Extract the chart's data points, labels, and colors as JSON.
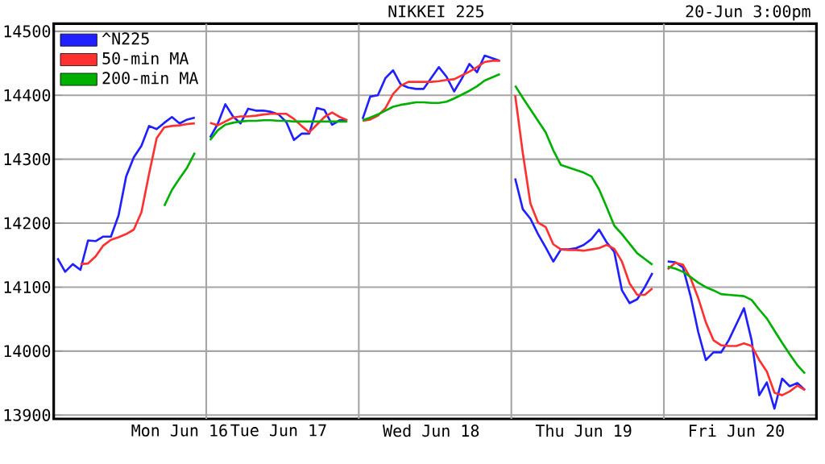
{
  "chart_data": {
    "type": "line",
    "title": "NIKKEI 225",
    "subtitle": "20-Jun 3:00pm",
    "categories": [
      null,
      null,
      null,
      null,
      null,
      null,
      null,
      null,
      null,
      null,
      null,
      null,
      null,
      null,
      null,
      null,
      "Mon Jun 16",
      null,
      null,
      null,
      null,
      null,
      null,
      null,
      null,
      null,
      null,
      null,
      null,
      "Tue Jun 17",
      null,
      null,
      null,
      null,
      null,
      null,
      null,
      null,
      null,
      null,
      null,
      null,
      null,
      null,
      null,
      null,
      null,
      null,
      null,
      "Wed Jun 18",
      null,
      null,
      null,
      null,
      null,
      null,
      null,
      null,
      null,
      null,
      null,
      null,
      null,
      null,
      null,
      null,
      null,
      null,
      null,
      "Thu Jun 19",
      null,
      null,
      null,
      null,
      null,
      null,
      null,
      null,
      null,
      null,
      null,
      null,
      null,
      null,
      null,
      null,
      null,
      null,
      null,
      "Fri Jun 20",
      null,
      null,
      null,
      null,
      null,
      null,
      null,
      null,
      null,
      null
    ],
    "ylim": [
      13894,
      14512
    ],
    "yticks": [
      13900,
      14000,
      14100,
      14200,
      14300,
      14400,
      14500
    ],
    "grid": "y",
    "legend": "top left",
    "series": [
      {
        "name": "^N225",
        "color": "#2020ff",
        "values": [
          14145,
          14124,
          14136,
          14127,
          14173,
          14172,
          14179,
          14179,
          14212,
          14273,
          14303,
          14321,
          14352,
          14347,
          14357,
          14366,
          14356,
          14362,
          14365,
          null,
          14334,
          14355,
          14386,
          14367,
          14356,
          14379,
          14376,
          14376,
          14374,
          14370,
          14358,
          14330,
          14340,
          14340,
          14380,
          14377,
          14354,
          14361,
          14361,
          null,
          14363,
          14398,
          14400,
          14427,
          14439,
          14417,
          14412,
          14410,
          14410,
          14427,
          14444,
          14429,
          14406,
          14426,
          14449,
          14436,
          14462,
          14458,
          14454,
          null,
          14270,
          14222,
          14207,
          14183,
          14162,
          14140,
          14159,
          14159,
          14161,
          14166,
          14175,
          14190,
          14170,
          14155,
          14095,
          14075,
          14081,
          14100,
          14122,
          null,
          14140,
          14139,
          14131,
          14086,
          14030,
          13986,
          13998,
          13998,
          14017,
          14042,
          14067,
          14017,
          13931,
          13951,
          13910,
          13957,
          13945,
          13950,
          13939,
          null
        ]
      },
      {
        "name": "50-min MA",
        "color": "#ff3030",
        "values": [
          null,
          null,
          null,
          14136,
          14137,
          14148,
          14165,
          14174,
          14178,
          14183,
          14190,
          14217,
          14277,
          14333,
          14350,
          14352,
          14353,
          14355,
          14356,
          null,
          14357,
          14353,
          14359,
          14365,
          14367,
          14367,
          14368,
          14370,
          14371,
          14371,
          14371,
          14363,
          14352,
          14342,
          14354,
          14366,
          14373,
          14366,
          14361,
          null,
          14360,
          14362,
          14368,
          14380,
          14402,
          14415,
          14421,
          14421,
          14421,
          14421,
          14422,
          14424,
          14425,
          14431,
          14437,
          14444,
          14452,
          14454,
          14454,
          null,
          14400,
          14310,
          14231,
          14201,
          14194,
          14167,
          14159,
          14158,
          14158,
          14157,
          14159,
          14161,
          14166,
          14160,
          14140,
          14106,
          14088,
          14088,
          14098,
          null,
          14128,
          14138,
          14135,
          14114,
          14083,
          14045,
          14017,
          14009,
          14008,
          14008,
          14012,
          14008,
          13986,
          13968,
          13935,
          13931,
          13937,
          13946,
          13939,
          null
        ]
      },
      {
        "name": "200-min MA",
        "color": "#00b000",
        "values": [
          null,
          null,
          null,
          null,
          null,
          null,
          null,
          null,
          null,
          null,
          null,
          null,
          null,
          null,
          14227,
          14252,
          14270,
          14287,
          14310,
          null,
          14330,
          14345,
          14354,
          14357,
          14359,
          14360,
          14360,
          14361,
          14361,
          14360,
          14360,
          14359,
          14359,
          14359,
          14359,
          14359,
          14359,
          14359,
          14359,
          null,
          14361,
          14365,
          14370,
          14376,
          14382,
          14385,
          14387,
          14389,
          14389,
          14388,
          14388,
          14390,
          14395,
          14401,
          14407,
          14414,
          14423,
          14428,
          14433,
          null,
          14415,
          14396,
          14378,
          14360,
          14342,
          14314,
          14291,
          14287,
          14283,
          14279,
          14273,
          14253,
          14225,
          14196,
          14183,
          14168,
          14153,
          14144,
          14135,
          null,
          14132,
          14129,
          14124,
          14116,
          14107,
          14100,
          14095,
          14089,
          14088,
          14087,
          14086,
          14080,
          14065,
          14051,
          14032,
          14013,
          13995,
          13978,
          13965,
          null
        ]
      }
    ]
  }
}
